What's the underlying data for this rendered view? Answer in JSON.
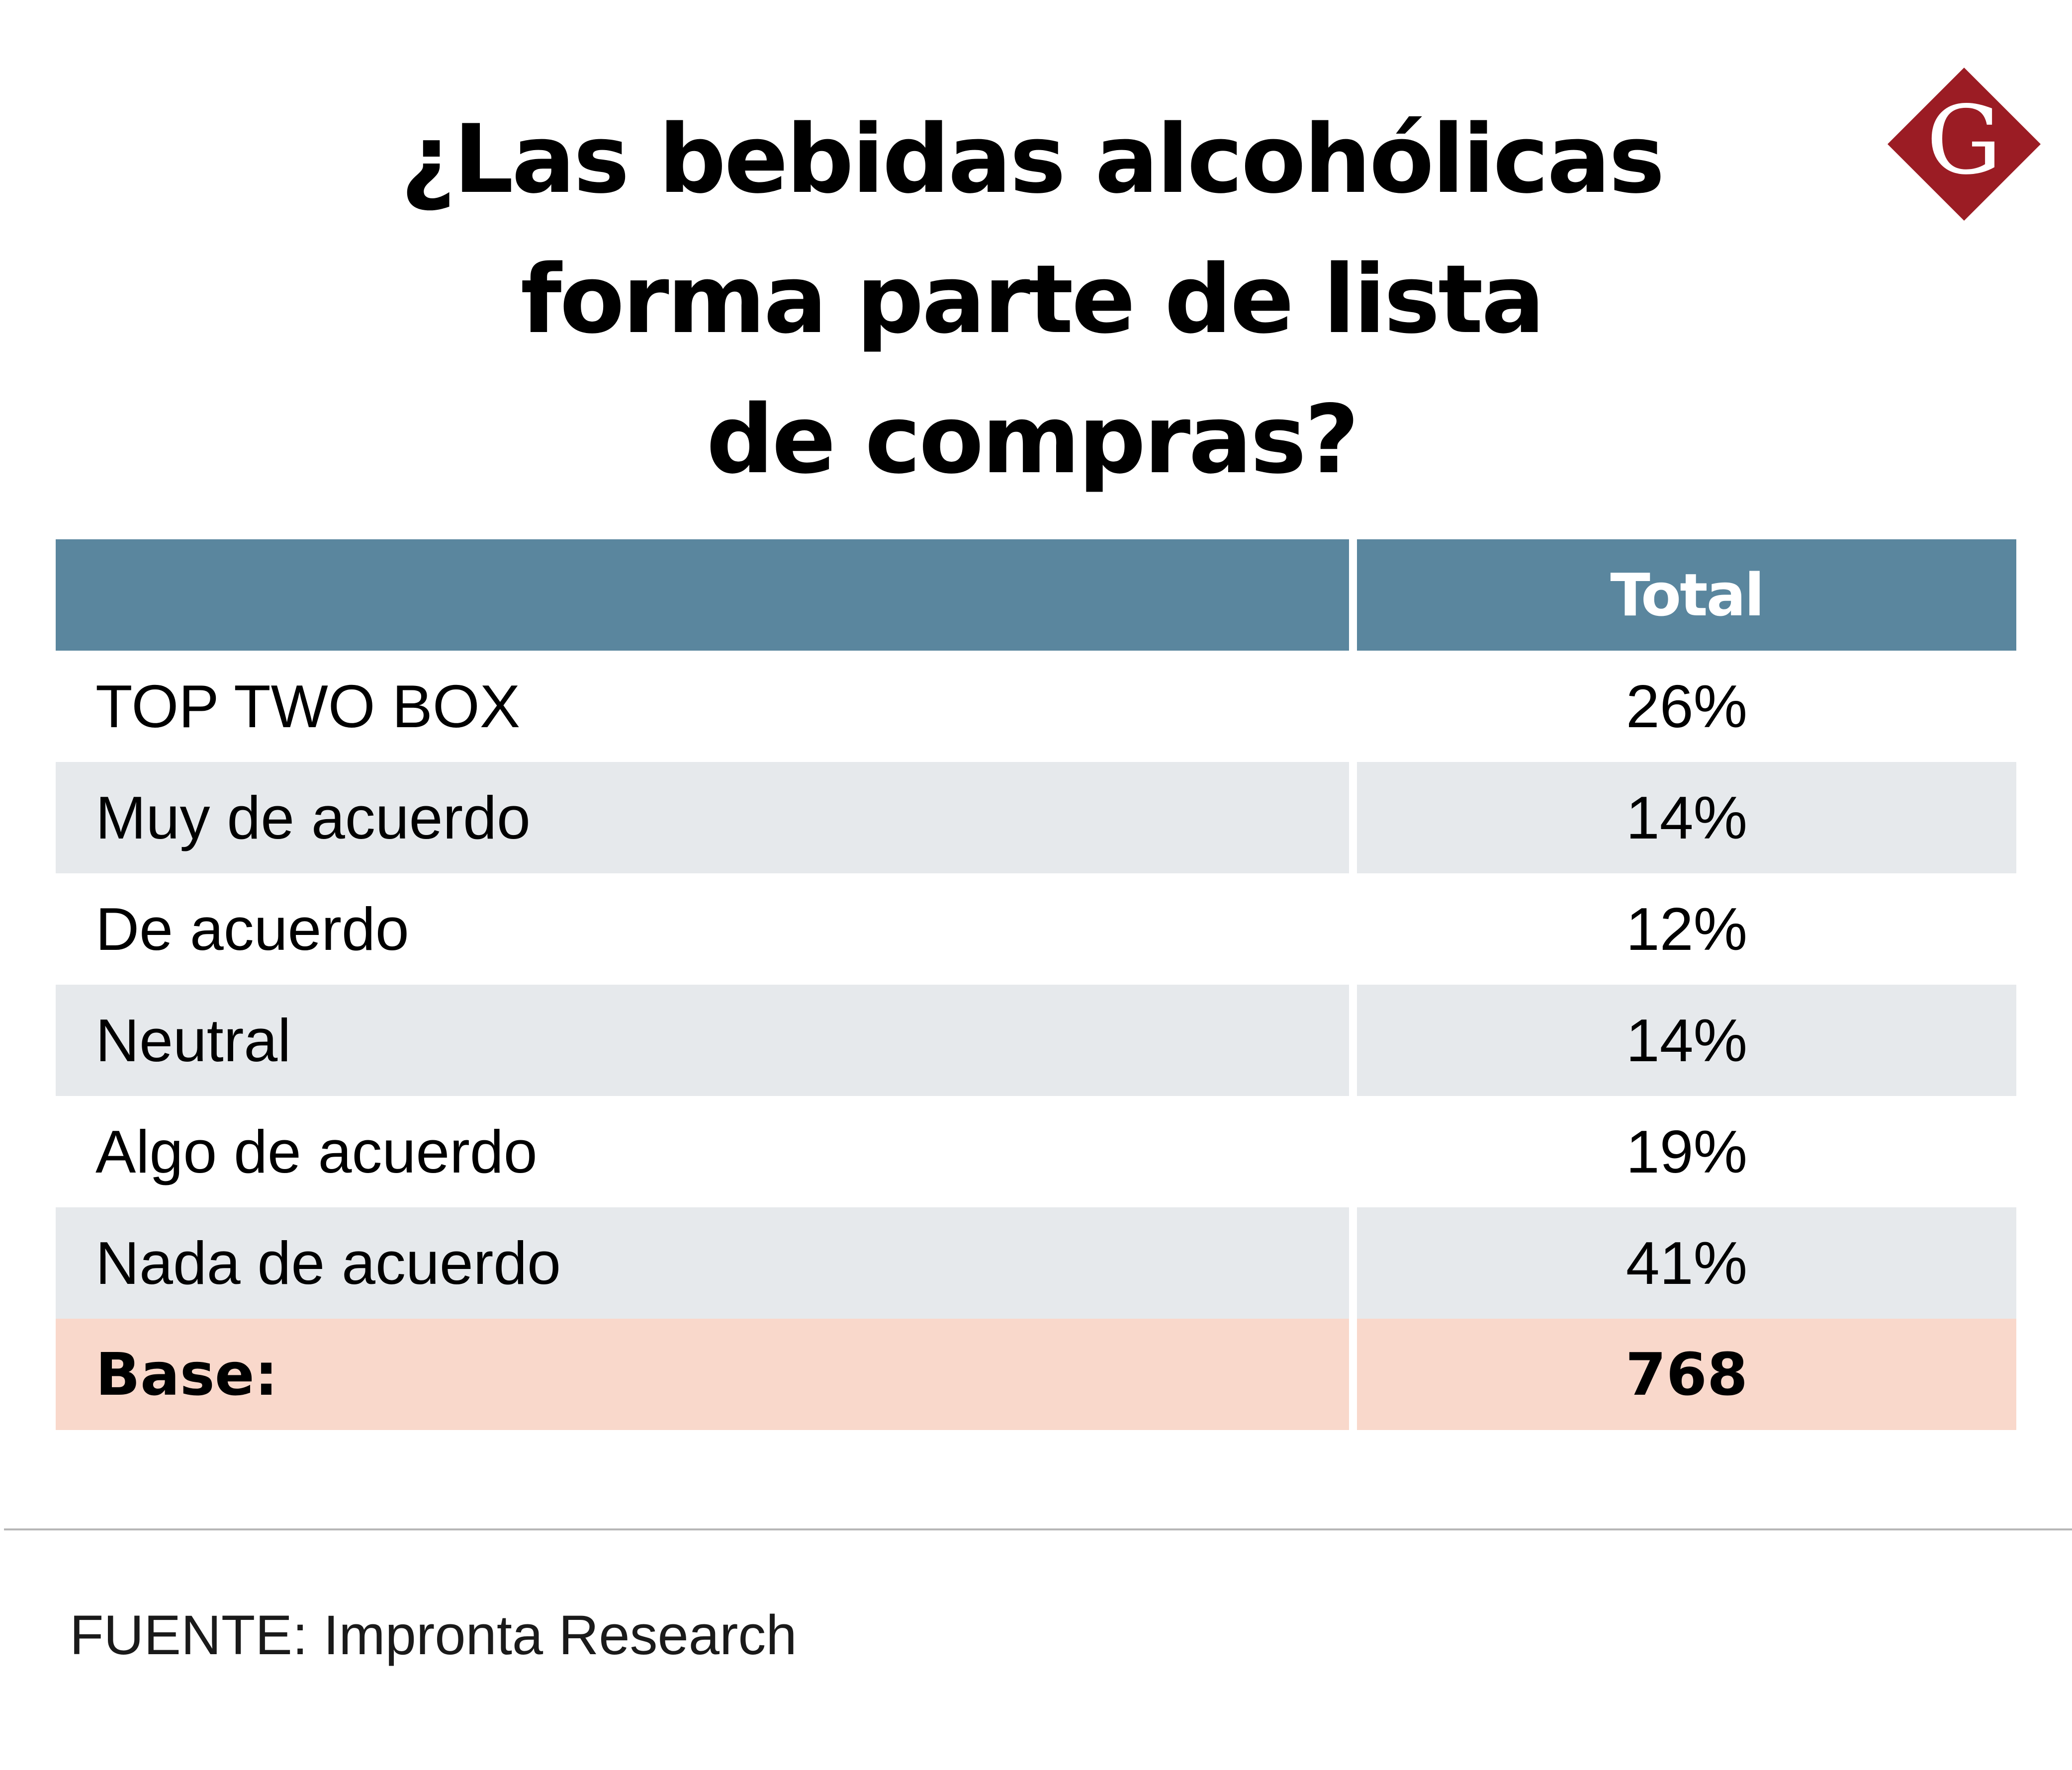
{
  "title": {
    "line1": "¿Las bebidas alcohólicas",
    "line2": "forma parte de lista",
    "line3": "de compras?"
  },
  "logo": {
    "letter": "G",
    "icon": "diamond-g-logo",
    "color": "#9b1c24"
  },
  "colors": {
    "header_bg": "#5a869e",
    "shaded_row_bg": "#e6e9ec",
    "base_row_bg": "#f9d8cb"
  },
  "chart_data": {
    "type": "table",
    "columns": [
      "",
      "Total"
    ],
    "rows": [
      {
        "label": "TOP TWO BOX",
        "value": "26%"
      },
      {
        "label": "Muy de acuerdo",
        "value": "14%"
      },
      {
        "label": "De acuerdo",
        "value": "12%"
      },
      {
        "label": "Neutral",
        "value": "14%"
      },
      {
        "label": "Algo de acuerdo",
        "value": "19%"
      },
      {
        "label": "Nada de acuerdo",
        "value": "41%"
      }
    ],
    "base": {
      "label": "Base:",
      "value": "768"
    }
  },
  "source": "FUENTE: Impronta Research"
}
